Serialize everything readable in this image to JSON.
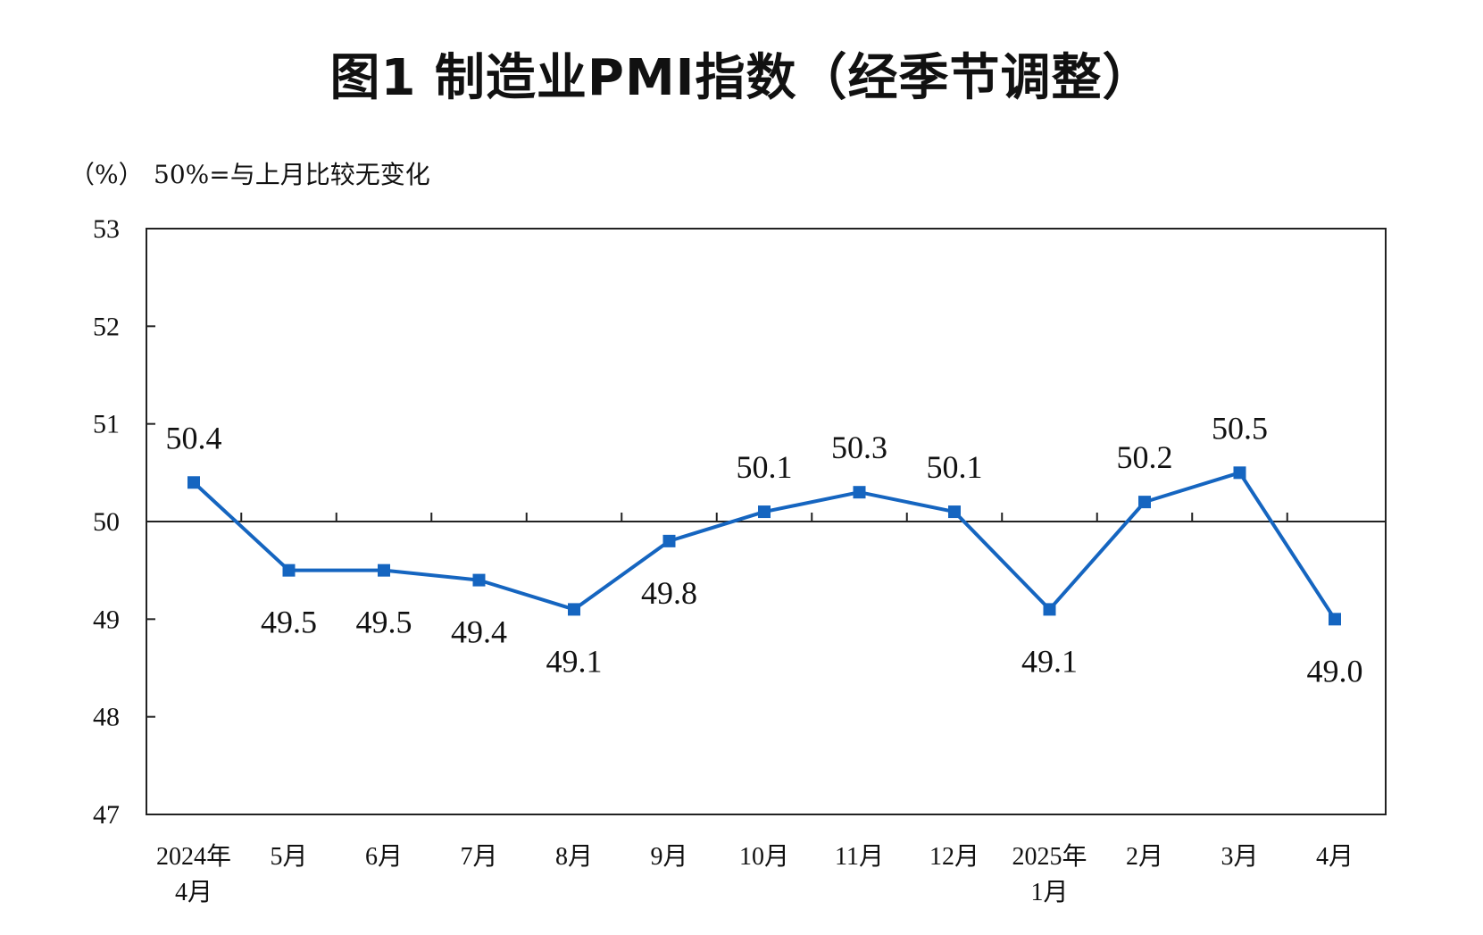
{
  "chart_data": {
    "type": "line",
    "title": "图1  制造业PMI指数（经季节调整）",
    "unit": "（%）",
    "note": "50%=与上月比较无变化",
    "categories": [
      [
        "2024年",
        "4月"
      ],
      [
        "5月"
      ],
      [
        "6月"
      ],
      [
        "7月"
      ],
      [
        "8月"
      ],
      [
        "9月"
      ],
      [
        "10月"
      ],
      [
        "11月"
      ],
      [
        "12月"
      ],
      [
        "2025年",
        "1月"
      ],
      [
        "2月"
      ],
      [
        "3月"
      ],
      [
        "4月"
      ]
    ],
    "series": [
      {
        "values": [
          50.4,
          49.5,
          49.5,
          49.4,
          49.1,
          49.8,
          50.1,
          50.3,
          50.1,
          49.1,
          50.2,
          50.5,
          49.0
        ],
        "labels": [
          "50.4",
          "49.5",
          "49.5",
          "49.4",
          "49.1",
          "49.8",
          "50.1",
          "50.3",
          "50.1",
          "49.1",
          "50.2",
          "50.5",
          "49.0"
        ],
        "label_positions": [
          "above",
          "below",
          "below",
          "below",
          "below",
          "below",
          "above",
          "above",
          "above",
          "below",
          "above",
          "above",
          "below"
        ],
        "color": "#1565C0",
        "marker": "square"
      }
    ],
    "ylim": [
      47,
      53
    ],
    "yticks": [
      "47",
      "48",
      "49",
      "50",
      "51",
      "52",
      "53"
    ],
    "reference_line": 50,
    "grid": false,
    "legend": false
  }
}
